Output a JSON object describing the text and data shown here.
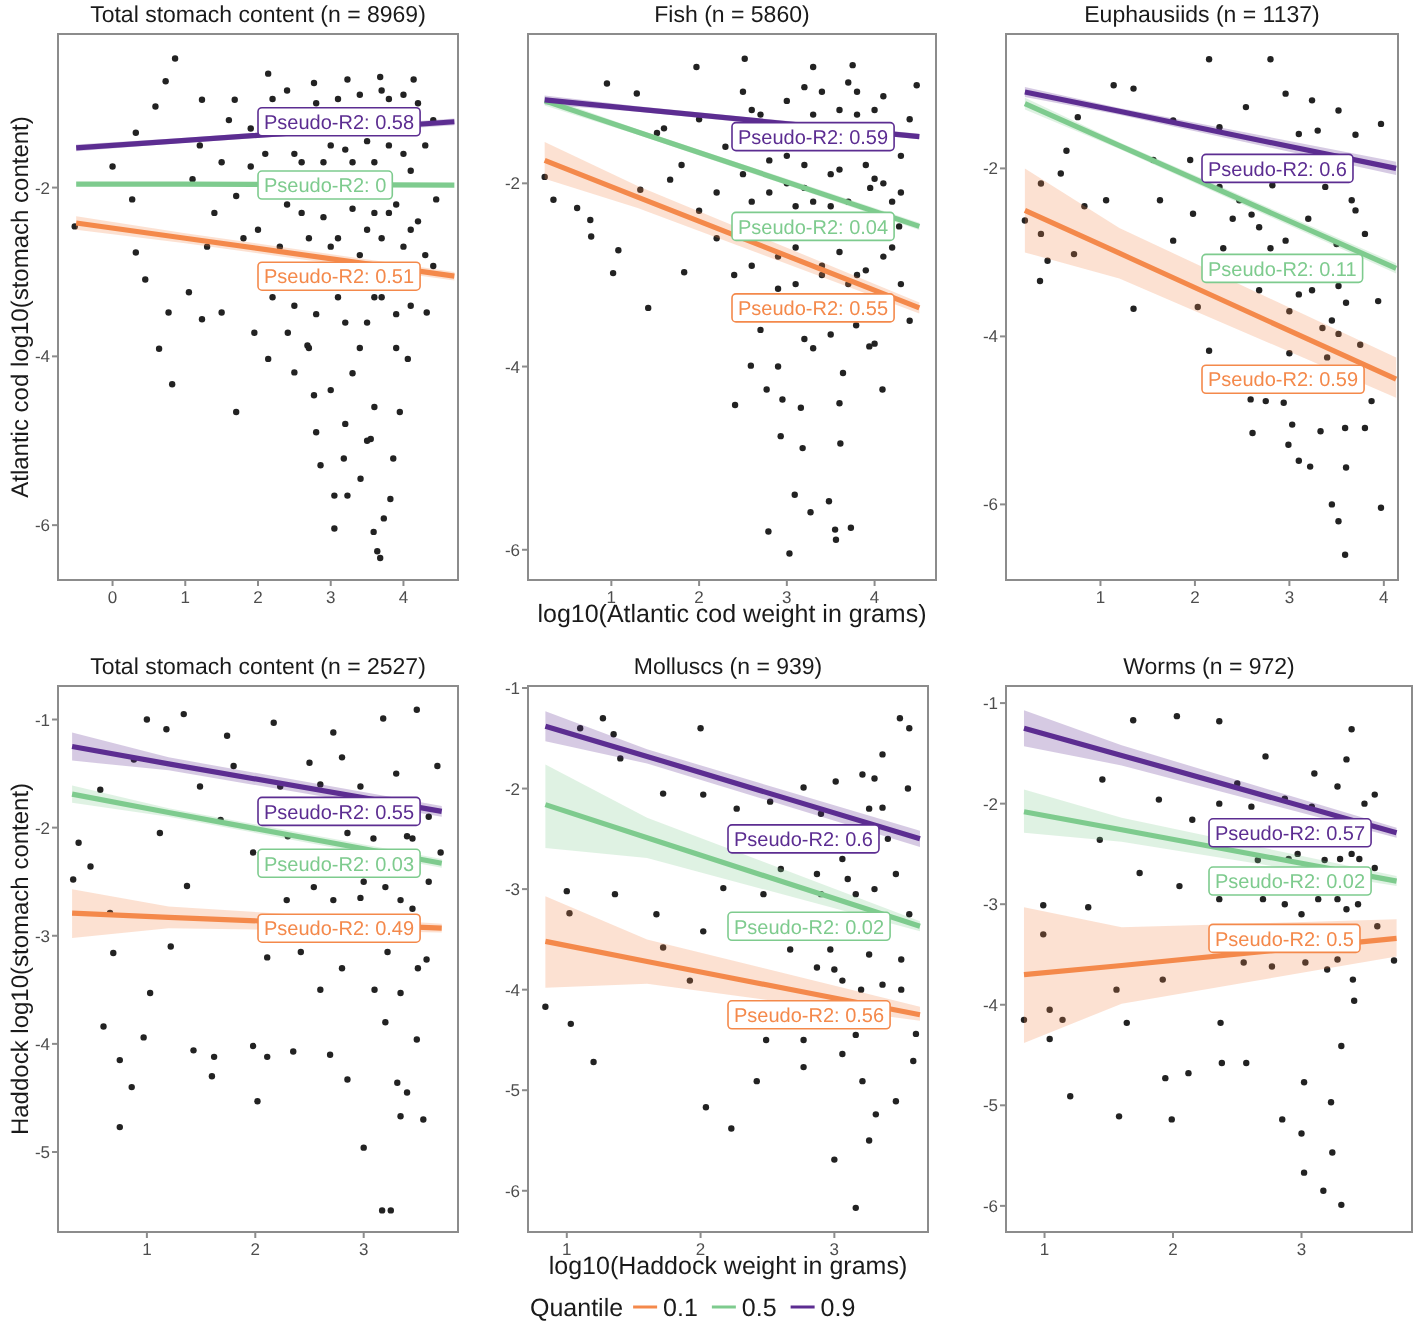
{
  "chart_data": [
    {
      "type": "scatter",
      "title": "Total stomach content (n = 8969)",
      "ylabel": "Atlantic cod log10(stomach content)",
      "xlim": [
        -0.75,
        4.75
      ],
      "ylim": [
        -6.65,
        -0.18
      ],
      "xticks": [
        0,
        1,
        2,
        3,
        4
      ],
      "yticks": [
        -6,
        -4,
        -2
      ],
      "series": [
        {
          "color": "#222222",
          "marker": "circle",
          "x": [
            0.86,
            0.73,
            -0.52,
            0.0,
            0.64,
            0.82,
            1.7,
            2.77,
            2.8,
            3.05,
            3.05,
            3.23,
            3.41,
            3.59,
            3.64,
            3.68,
            3.73,
            3.82,
            3.18,
            2.86,
            3.55,
            3.86,
            3.95,
            4.06,
            4.32,
            4.41,
            4.45,
            4.41,
            4.14,
            3.68,
            3.23,
            2.77,
            2.14,
            1.68,
            1.23,
            0.59,
            0.32,
            0.27,
            0.32,
            0.45,
            0.77,
            1.05,
            1.23,
            1.5,
            1.95,
            2.14,
            2.5,
            2.41,
            2.68,
            1.2,
            1.4,
            1.6,
            1.8,
            1.9,
            2.2,
            2.3,
            2.5,
            2.6,
            2.8,
            2.9,
            3.0,
            3.1,
            3.2,
            3.3,
            3.4,
            3.5,
            3.5,
            3.6,
            3.7,
            3.8,
            3.8,
            3.9,
            4.0,
            4.0,
            4.1,
            4.2,
            4.2,
            3.3,
            3.6,
            2.7,
            1.1,
            1.3,
            1.5,
            1.7,
            1.9,
            2.0,
            2.1,
            2.2,
            2.4,
            2.4,
            2.6,
            2.7,
            2.8,
            2.9,
            3.0,
            3.1,
            3.1,
            3.2,
            3.3,
            3.4,
            3.4,
            3.5,
            3.6,
            3.6,
            3.7,
            3.7,
            3.8,
            3.9,
            3.9,
            4.0,
            4.1,
            4.1,
            4.3,
            4.3,
            3.0,
            3.5,
            3.2,
            2.5
          ],
          "values": [
            -0.47,
            -0.74,
            -2.46,
            -1.75,
            -3.91,
            -4.33,
            -4.66,
            -4.46,
            -4.9,
            -5.65,
            -6.04,
            -5.65,
            -5.45,
            -6.08,
            -6.31,
            -6.39,
            -5.92,
            -5.69,
            -5.21,
            -5.29,
            -4.98,
            -5.21,
            -4.66,
            -4.03,
            -3.48,
            -2.93,
            -2.14,
            -1.2,
            -0.72,
            -0.69,
            -0.72,
            -0.76,
            -0.65,
            -0.96,
            -0.96,
            -1.04,
            -1.35,
            -2.14,
            -2.77,
            -3.09,
            -3.48,
            -3.24,
            -3.56,
            -3.48,
            -3.72,
            -4.03,
            -4.19,
            -3.72,
            -3.87,
            -1.5,
            -2.3,
            -1.2,
            -2.6,
            -1.75,
            -0.95,
            -2.7,
            -1.6,
            -2.3,
            -1.0,
            -1.7,
            -2.7,
            -3.3,
            -1.55,
            -2.25,
            -0.9,
            -2.5,
            -3.6,
            -1.7,
            -3.3,
            -0.95,
            -2.3,
            -3.9,
            -1.6,
            -2.7,
            -3.4,
            -1.0,
            -2.4,
            -4.2,
            -4.6,
            -3.9,
            -1.9,
            -2.7,
            -1.7,
            -2.1,
            -1.3,
            -2.5,
            -1.6,
            -3.3,
            -2.2,
            -0.85,
            -1.7,
            -2.6,
            -3.5,
            -2.35,
            -1.5,
            -0.95,
            -2.6,
            -3.6,
            -1.7,
            -2.8,
            -3.9,
            -1.45,
            -2.3,
            -3.3,
            -0.85,
            -2.6,
            -1.5,
            -2.2,
            -3.5,
            -0.9,
            -1.8,
            -2.5,
            -2.8,
            -1.5,
            -4.4,
            -5.0,
            -4.8,
            -3.4
          ]
        },
        {
          "type": "line",
          "color": "#f4894b",
          "x": [
            -0.5,
            1.0,
            4.7
          ],
          "values": [
            -2.42,
            -2.6,
            -3.05
          ],
          "lower": [
            -2.5,
            -2.66,
            -3.1
          ],
          "upper": [
            -2.34,
            -2.54,
            -3.0
          ]
        },
        {
          "type": "line",
          "color": "#7ecb8e",
          "x": [
            -0.5,
            1.0,
            4.7
          ],
          "values": [
            -1.96,
            -1.96,
            -1.97
          ]
        },
        {
          "type": "line",
          "color": "#5c2d91",
          "x": [
            -0.5,
            1.0,
            4.7
          ],
          "values": [
            -1.53,
            -1.44,
            -1.22
          ],
          "lower": [
            -1.57,
            -1.47,
            -1.26
          ],
          "upper": [
            -1.49,
            -1.41,
            -1.18
          ]
        }
      ],
      "annotations": [
        "Pseudo-R2: 0.51",
        "Pseudo-R2: 0",
        "Pseudo-R2: 0.58"
      ]
    },
    {
      "type": "scatter",
      "title": "Fish (n = 5860)",
      "xlabel": "log10(Atlantic cod weight in grams)",
      "xlim": [
        0.05,
        4.7
      ],
      "ylim": [
        -6.33,
        -0.37
      ],
      "xticks": [
        1,
        2,
        3,
        4
      ],
      "yticks": [
        -6,
        -4,
        -2
      ],
      "series": [
        {
          "color": "#222222",
          "marker": "circle",
          "x": [
            0.24,
            0.34,
            0.61,
            0.76,
            0.77,
            1.02,
            1.08,
            1.42,
            0.95,
            1.97,
            2.52,
            3.3,
            3.75,
            4.48,
            1.83,
            2.41,
            2.77,
            2.95,
            3.16,
            2.93,
            3.18,
            3.61,
            2.59,
            4.09,
            3.09,
            3.27,
            3.48,
            3.55,
            3.73,
            2.79,
            3.03,
            3.56,
            4.28,
            4.3,
            3.94,
            3.64,
            3.79,
            1.29,
            1.52,
            1.67,
            1.33,
            2.3,
            2.6,
            2.6,
            2.8,
            2.9,
            3.0,
            3.0,
            3.1,
            3.2,
            3.3,
            3.4,
            3.4,
            3.5,
            3.5,
            3.6,
            3.6,
            3.7,
            3.8,
            3.8,
            3.9,
            3.95,
            4.0,
            4.0,
            4.1,
            4.1,
            4.3,
            4.2,
            2.2,
            2.0,
            1.8,
            2.4,
            2.7,
            3.2,
            2.5,
            2.5,
            2.6,
            2.7,
            2.8,
            2.9,
            3.0,
            3.1,
            3.2,
            3.2,
            3.3,
            3.4,
            3.5,
            3.6,
            3.7,
            3.7,
            3.8,
            3.9,
            4.0,
            4.1,
            4.2,
            4.3,
            4.4,
            4.4,
            3.3,
            2.9,
            3.6,
            2.2,
            2.0,
            1.6,
            3.1
          ],
          "values": [
            -1.93,
            -2.18,
            -2.27,
            -2.4,
            -2.58,
            -2.98,
            -2.73,
            -3.36,
            -0.91,
            -0.73,
            -0.64,
            -0.73,
            -0.71,
            -0.93,
            -2.97,
            -4.42,
            -4.25,
            -4.36,
            -4.45,
            -4.76,
            -4.89,
            -4.84,
            -3.99,
            -4.25,
            -5.4,
            -5.59,
            -5.47,
            -5.78,
            -5.76,
            -5.8,
            -6.04,
            -5.89,
            -2.47,
            -3.1,
            -3.78,
            -4.07,
            -3.55,
            -1.02,
            -1.45,
            -1.96,
            -2.07,
            -1.6,
            -1.2,
            -2.2,
            -1.75,
            -2.8,
            -1.1,
            -2.0,
            -3.1,
            -1.8,
            -2.2,
            -1.0,
            -2.9,
            -1.9,
            -3.65,
            -1.2,
            -2.75,
            -2.2,
            -1.0,
            -3.0,
            -1.8,
            -2.05,
            -1.2,
            -3.75,
            -2.0,
            -2.8,
            -1.7,
            -2.2,
            -2.6,
            -1.3,
            -1.8,
            -3.0,
            -3.6,
            -3.7,
            -1.0,
            -1.9,
            -2.9,
            -1.25,
            -2.1,
            -3.15,
            -1.7,
            -2.7,
            -0.95,
            -2.05,
            -1.25,
            -3.0,
            -2.25,
            -1.85,
            -3.1,
            -0.9,
            -1.25,
            -2.95,
            -1.95,
            -1.05,
            -2.7,
            -2.1,
            -1.3,
            -3.5,
            -3.8,
            -4.0,
            -4.4,
            -2.1,
            -2.3,
            -1.4,
            -2.25
          ]
        },
        {
          "type": "line",
          "color": "#f4894b",
          "x": [
            0.24,
            1.3,
            4.51
          ],
          "values": [
            -1.75,
            -2.15,
            -3.36
          ],
          "lower": [
            -1.95,
            -2.27,
            -3.42
          ],
          "upper": [
            -1.55,
            -2.03,
            -3.3
          ]
        },
        {
          "type": "line",
          "color": "#7ecb8e",
          "x": [
            0.24,
            1.3,
            4.51
          ],
          "values": [
            -1.1,
            -1.44,
            -2.47
          ],
          "lower": [
            -1.15,
            -1.47,
            -2.51
          ],
          "upper": [
            -1.05,
            -1.41,
            -2.43
          ]
        },
        {
          "type": "line",
          "color": "#5c2d91",
          "x": [
            0.24,
            1.3,
            4.51
          ],
          "values": [
            -1.09,
            -1.19,
            -1.49
          ],
          "lower": [
            -1.14,
            -1.22,
            -1.52
          ],
          "upper": [
            -1.04,
            -1.16,
            -1.46
          ]
        }
      ],
      "annotations": [
        "Pseudo-R2: 0.55",
        "Pseudo-R2: 0.04",
        "Pseudo-R2: 0.59"
      ]
    },
    {
      "type": "scatter",
      "title": "Euphausiids (n = 1137)",
      "xlim": [
        0.0,
        4.15
      ],
      "ylim": [
        -6.9,
        -0.4
      ],
      "xticks": [
        1,
        2,
        3,
        4
      ],
      "yticks": [
        -6,
        -4,
        -2
      ],
      "series": [
        {
          "color": "#222222",
          "marker": "circle",
          "x": [
            2.15,
            2.8,
            1.14,
            1.35,
            0.76,
            0.64,
            0.58,
            0.37,
            0.2,
            0.37,
            0.36,
            0.44,
            0.72,
            0.83,
            1.06,
            1.35,
            2.03,
            2.15,
            2.59,
            2.61,
            2.75,
            2.94,
            3.03,
            2.99,
            3.1,
            3.22,
            3.33,
            3.59,
            3.45,
            3.52,
            3.59,
            3.6,
            3.8,
            3.97,
            3.87,
            3.97,
            3.8,
            3.94,
            3.52,
            1.77,
            1.56,
            1.63,
            1.98,
            1.77,
            2.26,
            2.54,
            2.96,
            3.24,
            3.52,
            3.1,
            3.38,
            2.82,
            2.47,
            2.68,
            2.96,
            3.24,
            3.52,
            3.1,
            2.68,
            3.66,
            3.45,
            2.26,
            1.95,
            2.6,
            2.8,
            3.0,
            3.2,
            3.35,
            3.5,
            3.6,
            3.7,
            3.75,
            3.4,
            3.0,
            2.4,
            2.3,
            3.3,
            3.7
          ],
          "values": [
            -0.7,
            -0.7,
            -1.01,
            -1.05,
            -1.39,
            -1.79,
            -2.06,
            -2.18,
            -2.62,
            -2.78,
            -3.34,
            -3.1,
            -3.02,
            -2.45,
            -2.38,
            -3.67,
            -3.65,
            -4.17,
            -4.75,
            -5.15,
            -4.77,
            -4.79,
            -5.05,
            -5.29,
            -5.48,
            -5.55,
            -5.13,
            -5.09,
            -6.0,
            -6.2,
            -6.6,
            -5.56,
            -5.09,
            -6.04,
            -4.77,
            -1.47,
            -2.78,
            -3.58,
            -3.97,
            -1.43,
            -1.9,
            -2.38,
            -2.54,
            -2.86,
            -1.51,
            -1.27,
            -1.11,
            -1.19,
            -1.31,
            -1.59,
            -2.22,
            -2.2,
            -2.38,
            -2.7,
            -2.86,
            -3.45,
            -3.4,
            -3.5,
            -3.45,
            -2.38,
            -3.81,
            -2.22,
            -1.9,
            -2.55,
            -2.95,
            -3.7,
            -2.6,
            -3.9,
            -2.9,
            -3.6,
            -2.5,
            -4.1,
            -4.25,
            -4.2,
            -2.6,
            -2.95,
            -1.55,
            -1.6
          ]
        },
        {
          "type": "line",
          "color": "#f4894b",
          "x": [
            0.2,
            1.2,
            4.13
          ],
          "values": [
            -2.5,
            -3.01,
            -4.51
          ],
          "lower": [
            -3.0,
            -3.31,
            -4.73
          ],
          "upper": [
            -2.0,
            -2.71,
            -4.25
          ]
        },
        {
          "type": "line",
          "color": "#7ecb8e",
          "x": [
            0.2,
            1.2,
            4.13
          ],
          "values": [
            -1.23,
            -1.73,
            -3.19
          ],
          "lower": [
            -1.3,
            -1.77,
            -3.25
          ],
          "upper": [
            -1.16,
            -1.69,
            -3.13
          ]
        },
        {
          "type": "line",
          "color": "#5c2d91",
          "x": [
            0.2,
            1.2,
            4.13
          ],
          "values": [
            -1.09,
            -1.32,
            -2.0
          ],
          "lower": [
            -1.15,
            -1.36,
            -2.08
          ],
          "upper": [
            -1.03,
            -1.28,
            -1.92
          ]
        }
      ],
      "annotations": [
        "Pseudo-R2: 0.59",
        "Pseudo-R2: 0.11",
        "Pseudo-R2: 0.6"
      ]
    },
    {
      "type": "scatter",
      "title": "Total stomach content (n = 2527)",
      "ylabel": "Haddock log10(stomach content)",
      "xlim": [
        0.18,
        3.87
      ],
      "ylim": [
        -5.74,
        -0.69
      ],
      "xticks": [
        1,
        2,
        3
      ],
      "yticks": [
        -5,
        -4,
        -3,
        -2,
        -1
      ],
      "series": [
        {
          "color": "#222222",
          "marker": "circle",
          "x": [
            0.32,
            0.37,
            0.48,
            1.0,
            1.34,
            2.17,
            3.49,
            3.18,
            2.72,
            1.74,
            1.18,
            0.88,
            0.57,
            0.66,
            0.69,
            0.6,
            0.75,
            0.75,
            0.86,
            0.97,
            1.03,
            1.22,
            1.43,
            1.62,
            1.6,
            1.98,
            2.02,
            2.11,
            2.35,
            2.69,
            2.85,
            3.0,
            3.17,
            3.25,
            3.31,
            3.34,
            3.4,
            3.55,
            3.49,
            3.58,
            3.71,
            3.68,
            2.54,
            2.29,
            1.98,
            1.68,
            1.49,
            1.8,
            2.23,
            2.6,
            2.85,
            3.09,
            3.34,
            3.22,
            2.97,
            2.72,
            2.42,
            2.97,
            3.4,
            3.6,
            3.34,
            2.11,
            1.37,
            1.12,
            2.3,
            2.5,
            2.8,
            3.0,
            3.2,
            3.3,
            3.45,
            3.5,
            3.1,
            2.8,
            3.6,
            3.2,
            2.6,
            3.45
          ],
          "values": [
            -2.48,
            -2.14,
            -2.36,
            -1.0,
            -0.95,
            -1.03,
            -0.91,
            -0.99,
            -1.12,
            -1.15,
            -1.09,
            -1.37,
            -1.65,
            -2.79,
            -3.16,
            -3.84,
            -4.15,
            -4.77,
            -4.4,
            -3.94,
            -3.53,
            -3.1,
            -4.06,
            -4.12,
            -4.3,
            -4.02,
            -4.53,
            -4.12,
            -4.07,
            -4.1,
            -4.33,
            -4.96,
            -5.54,
            -5.54,
            -4.36,
            -4.67,
            -4.45,
            -4.7,
            -3.96,
            -3.22,
            -2.23,
            -1.43,
            -2.55,
            -2.67,
            -2.23,
            -1.93,
            -1.62,
            -1.43,
            -1.62,
            -1.6,
            -2.05,
            -2.1,
            -2.67,
            -3.15,
            -2.65,
            -2.67,
            -3.15,
            -1.62,
            -2.08,
            -2.5,
            -3.53,
            -3.2,
            -2.54,
            -2.05,
            -2.08,
            -1.4,
            -1.35,
            -2.5,
            -2.55,
            -1.5,
            -2.75,
            -3.3,
            -3.5,
            -3.3,
            -1.9,
            -3.8,
            -3.5,
            -2.1
          ]
        },
        {
          "type": "line",
          "color": "#f4894b",
          "x": [
            0.31,
            1.2,
            3.72
          ],
          "values": [
            -2.79,
            -2.83,
            -2.93
          ],
          "lower": [
            -3.02,
            -2.93,
            -2.97
          ],
          "upper": [
            -2.57,
            -2.73,
            -2.89
          ]
        },
        {
          "type": "line",
          "color": "#7ecb8e",
          "x": [
            0.31,
            1.2,
            3.72
          ],
          "values": [
            -1.69,
            -1.86,
            -2.33
          ],
          "lower": [
            -1.77,
            -1.9,
            -2.37
          ],
          "upper": [
            -1.61,
            -1.82,
            -2.29
          ]
        },
        {
          "type": "line",
          "color": "#5c2d91",
          "x": [
            0.31,
            1.2,
            3.72
          ],
          "values": [
            -1.25,
            -1.41,
            -1.85
          ],
          "lower": [
            -1.38,
            -1.47,
            -1.9
          ],
          "upper": [
            -1.12,
            -1.35,
            -1.8
          ]
        }
      ],
      "annotations": [
        "Pseudo-R2: 0.49",
        "Pseudo-R2: 0.03",
        "Pseudo-R2: 0.55"
      ]
    },
    {
      "type": "scatter",
      "title": "Molluscs (n = 939)",
      "xlabel": "log10(Haddock weight in grams)",
      "legend": "bottom",
      "legend_title": "Quantile",
      "xlim": [
        0.71,
        3.7
      ],
      "ylim": [
        -6.41,
        -0.98
      ],
      "xticks": [
        1,
        2,
        3
      ],
      "yticks": [
        -6,
        -5,
        -4,
        -3,
        -2,
        -1
      ],
      "series": [
        {
          "color": "#222222",
          "marker": "circle",
          "x": [
            0.84,
            1.03,
            1.2,
            1.0,
            1.02,
            1.36,
            1.1,
            1.27,
            1.35,
            1.4,
            2.0,
            1.72,
            1.67,
            1.72,
            1.92,
            2.02,
            2.04,
            2.23,
            2.42,
            2.49,
            2.77,
            3.0,
            3.16,
            3.06,
            3.21,
            3.31,
            3.26,
            3.46,
            3.59,
            3.61,
            3.56,
            3.49,
            3.36,
            3.21,
            3.01,
            2.77,
            2.52,
            2.27,
            2.02,
            2.17,
            2.47,
            2.67,
            2.87,
            2.97,
            3.06,
            3.16,
            3.26,
            3.36,
            3.46,
            3.56,
            3.26,
            3.06,
            2.87,
            2.77,
            3.36,
            3.16,
            2.9,
            3.1,
            3.3,
            3.5,
            3.0,
            3.2,
            3.4,
            3.5,
            2.9,
            3.3,
            2.6,
            3.55
          ],
          "values": [
            -4.17,
            -4.34,
            -4.72,
            -3.02,
            -3.24,
            -3.05,
            -1.4,
            -1.3,
            -1.46,
            -1.7,
            -1.4,
            -2.05,
            -3.25,
            -3.58,
            -3.91,
            -3.42,
            -5.17,
            -5.38,
            -4.91,
            -4.5,
            -4.77,
            -5.69,
            -6.17,
            -4.64,
            -4.91,
            -5.24,
            -5.5,
            -5.11,
            -4.71,
            -4.44,
            -1.4,
            -1.3,
            -1.66,
            -1.86,
            -1.93,
            -1.99,
            -2.13,
            -2.2,
            -2.06,
            -2.99,
            -3.05,
            -3.6,
            -2.85,
            -3.6,
            -2.7,
            -3.05,
            -3.65,
            -3.95,
            -2.85,
            -3.25,
            -2.2,
            -3.91,
            -3.78,
            -4.5,
            -2.19,
            -4.45,
            -2.25,
            -2.9,
            -3.0,
            -3.7,
            -3.8,
            -4.0,
            -2.5,
            -4.0,
            -3.05,
            -1.9,
            -2.8,
            -2.0
          ]
        },
        {
          "type": "line",
          "name": "0.1",
          "color": "#f4894b",
          "x": [
            0.84,
            1.6,
            3.64
          ],
          "values": [
            -3.52,
            -3.72,
            -4.25
          ],
          "lower": [
            -3.98,
            -3.94,
            -4.31
          ],
          "upper": [
            -3.07,
            -3.5,
            -4.17
          ]
        },
        {
          "type": "line",
          "name": "0.5",
          "color": "#7ecb8e",
          "x": [
            0.84,
            1.6,
            3.64
          ],
          "values": [
            -2.16,
            -2.49,
            -3.37
          ],
          "lower": [
            -2.59,
            -2.69,
            -3.42
          ],
          "upper": [
            -1.76,
            -2.29,
            -3.32
          ]
        },
        {
          "type": "line",
          "name": "0.9",
          "color": "#5c2d91",
          "x": [
            0.84,
            1.6,
            3.64
          ],
          "values": [
            -1.38,
            -1.68,
            -2.5
          ],
          "lower": [
            -1.53,
            -1.75,
            -2.58
          ],
          "upper": [
            -1.23,
            -1.61,
            -2.42
          ]
        }
      ],
      "annotations": [
        "Pseudo-R2: 0.56",
        "Pseudo-R2: 0.02",
        "Pseudo-R2: 0.6"
      ]
    },
    {
      "type": "scatter",
      "title": "Worms (n = 972)",
      "xlim": [
        0.7,
        3.86
      ],
      "ylim": [
        -6.26,
        -0.83
      ],
      "xticks": [
        1,
        2,
        3
      ],
      "yticks": [
        -6,
        -5,
        -4,
        -3,
        -2,
        -1
      ],
      "series": [
        {
          "color": "#222222",
          "marker": "circle",
          "x": [
            0.84,
            0.99,
            0.99,
            1.04,
            1.04,
            1.14,
            1.2,
            1.58,
            1.56,
            1.64,
            1.69,
            2.03,
            2.36,
            2.72,
            1.45,
            1.43,
            1.34,
            1.92,
            1.94,
            1.99,
            2.12,
            2.37,
            2.38,
            2.57,
            2.85,
            3.0,
            3.02,
            3.17,
            3.24,
            3.31,
            3.02,
            3.23,
            3.31,
            3.41,
            3.35,
            3.39,
            3.57,
            3.57,
            3.59,
            3.72,
            3.28,
            3.08,
            2.87,
            2.61,
            2.36,
            2.15,
            1.89,
            1.74,
            2.05,
            2.36,
            2.66,
            2.97,
            3.18,
            3.39,
            3.28,
            3.13,
            3.44,
            3.03,
            3.28,
            2.77,
            3.49,
            2.87,
            2.55,
            2.9,
            3.3,
            3.35,
            3.2,
            3.4,
            3.0,
            3.45,
            2.5,
            3.1,
            2.7
          ],
          "values": [
            -4.15,
            -3.01,
            -3.3,
            -4.05,
            -4.34,
            -4.15,
            -4.91,
            -5.11,
            -3.85,
            -4.18,
            -1.17,
            -1.13,
            -1.18,
            -1.53,
            -1.76,
            -2.36,
            -3.03,
            -3.75,
            -4.73,
            -5.14,
            -4.68,
            -4.18,
            -4.58,
            -4.58,
            -5.14,
            -5.28,
            -5.67,
            -5.85,
            -5.47,
            -5.99,
            -4.77,
            -4.97,
            -4.41,
            -3.96,
            -1.56,
            -1.26,
            -1.91,
            -2.64,
            -3.22,
            -3.56,
            -1.83,
            -2.03,
            -1.95,
            -2.03,
            -2.0,
            -2.16,
            -1.96,
            -2.69,
            -2.82,
            -2.95,
            -2.56,
            -2.5,
            -2.56,
            -2.5,
            -2.95,
            -2.95,
            -3.0,
            -3.58,
            -3.55,
            -3.62,
            -2.0,
            -3.0,
            -3.58,
            -2.55,
            -2.55,
            -3.05,
            -3.65,
            -3.75,
            -3.1,
            -2.55,
            -1.8,
            -1.7,
            -2.95
          ]
        },
        {
          "type": "line",
          "color": "#f4894b",
          "x": [
            0.84,
            1.6,
            3.74
          ],
          "values": [
            -3.7,
            -3.61,
            -3.34
          ],
          "lower": [
            -4.38,
            -3.99,
            -3.52
          ],
          "upper": [
            -3.03,
            -3.23,
            -3.15
          ]
        },
        {
          "type": "line",
          "color": "#7ecb8e",
          "x": [
            0.84,
            1.6,
            3.74
          ],
          "values": [
            -2.08,
            -2.26,
            -2.77
          ],
          "lower": [
            -2.29,
            -2.38,
            -2.82
          ],
          "upper": [
            -1.86,
            -2.14,
            -2.72
          ]
        },
        {
          "type": "line",
          "color": "#5c2d91",
          "x": [
            0.84,
            1.6,
            3.74
          ],
          "values": [
            -1.25,
            -1.52,
            -2.29
          ],
          "lower": [
            -1.43,
            -1.62,
            -2.34
          ],
          "upper": [
            -1.07,
            -1.42,
            -2.24
          ]
        }
      ],
      "annotations": [
        "Pseudo-R2: 0.5",
        "Pseudo-R2: 0.02",
        "Pseudo-R2: 0.57"
      ]
    }
  ]
}
